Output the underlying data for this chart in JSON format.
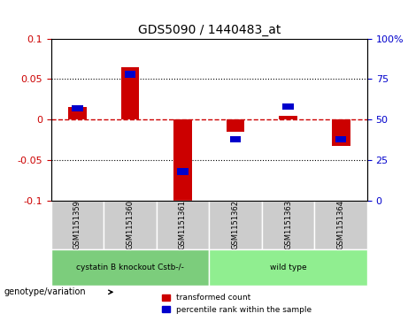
{
  "title": "GDS5090 / 1440483_at",
  "samples": [
    "GSM1151359",
    "GSM1151360",
    "GSM1151361",
    "GSM1151362",
    "GSM1151363",
    "GSM1151364"
  ],
  "red_values": [
    0.015,
    0.065,
    -0.103,
    -0.015,
    0.005,
    -0.032
  ],
  "blue_values_pct": [
    57,
    78,
    18,
    38,
    58,
    38
  ],
  "ylim_left": [
    -0.1,
    0.1
  ],
  "ylim_right": [
    0,
    100
  ],
  "yticks_left": [
    -0.1,
    -0.05,
    0.0,
    0.05,
    0.1
  ],
  "yticks_right": [
    0,
    25,
    50,
    75,
    100
  ],
  "groups": [
    {
      "label": "cystatin B knockout Cstb-/-",
      "samples": [
        0,
        1,
        2
      ],
      "color": "#90EE90"
    },
    {
      "label": "wild type",
      "samples": [
        3,
        4,
        5
      ],
      "color": "#90EE90"
    }
  ],
  "group_box_color": "#cccccc",
  "group_label_row_color_1": "#90EE90",
  "group_label_row_color_2": "#90EE90",
  "red_color": "#cc0000",
  "blue_color": "#0000cc",
  "zero_line_color": "#cc0000",
  "grid_color": "#000000",
  "bg_color": "#ffffff",
  "plot_bg_color": "#ffffff",
  "left_ylabel_color": "#cc0000",
  "right_ylabel_color": "#0000cc",
  "bar_width": 0.35,
  "legend_entries": [
    "transformed count",
    "percentile rank within the sample"
  ]
}
